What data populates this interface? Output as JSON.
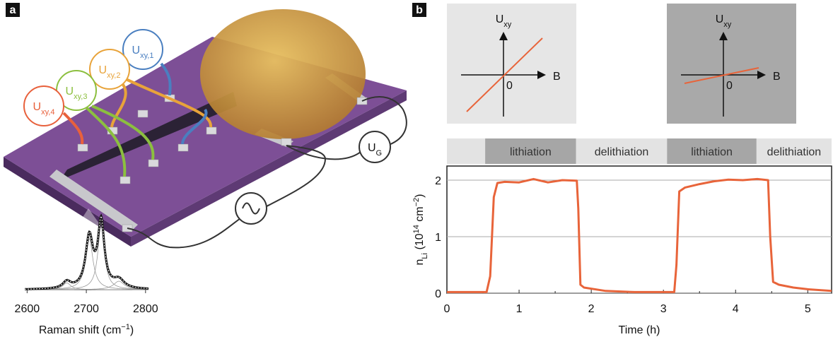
{
  "panel_labels": [
    "a",
    "b"
  ],
  "device": {
    "hall_probes": [
      {
        "main": "U",
        "sub": "xy,1",
        "color": "#4a7fc0"
      },
      {
        "main": "U",
        "sub": "xy,2",
        "color": "#e8a33a"
      },
      {
        "main": "U",
        "sub": "xy,3",
        "color": "#8cbf3f"
      },
      {
        "main": "U",
        "sub": "xy,4",
        "color": "#e8613c"
      }
    ],
    "gate": {
      "main": "U",
      "sub": "G"
    }
  },
  "raman": {
    "type": "line",
    "xlabel_parts": [
      {
        "text": "Raman shift (cm"
      },
      {
        "text": "−1",
        "shift": "super"
      },
      {
        "text": ")"
      }
    ],
    "xlim": [
      2596,
      2805
    ],
    "xticks": [
      2600,
      2700,
      2800
    ],
    "peaks": [
      {
        "center": 2667,
        "width": 16,
        "amplitude": 0.08
      },
      {
        "center": 2705,
        "width": 15,
        "amplitude": 0.6
      },
      {
        "center": 2725,
        "width": 13,
        "amplitude": 0.78
      },
      {
        "center": 2755,
        "width": 22,
        "amplitude": 0.1
      }
    ]
  },
  "hall_insets": [
    {
      "ylabel": {
        "main": "U",
        "sub": "xy"
      },
      "xlabel": "B",
      "origin": 0,
      "background": "#e6e6e6"
    },
    {
      "ylabel": {
        "main": "U",
        "sub": "xy"
      },
      "xlabel": "B",
      "origin": 0,
      "background": "#a9a9a9"
    }
  ],
  "chart_data": {
    "type": "line",
    "x": [
      0,
      0.55,
      0.6,
      0.65,
      0.7,
      0.8,
      1.0,
      1.2,
      1.4,
      1.6,
      1.8,
      1.82,
      1.85,
      1.9,
      2.2,
      2.6,
      3.15,
      3.18,
      3.22,
      3.3,
      3.5,
      3.7,
      3.9,
      4.1,
      4.3,
      4.45,
      4.48,
      4.52,
      4.6,
      4.8,
      5.0,
      5.33
    ],
    "series": [
      {
        "color": "#e8643a",
        "values": [
          0.02,
          0.02,
          0.3,
          1.7,
          1.95,
          1.97,
          1.96,
          2.02,
          1.96,
          2.0,
          1.99,
          1.5,
          0.15,
          0.1,
          0.04,
          0.02,
          0.02,
          0.5,
          1.8,
          1.87,
          1.93,
          1.98,
          2.01,
          2.0,
          2.02,
          2.0,
          1.0,
          0.2,
          0.15,
          0.1,
          0.07,
          0.04
        ]
      }
    ],
    "phases": [
      {
        "start": 0,
        "end": 0.53,
        "color": "#e3e3e3"
      },
      {
        "label": "lithiation",
        "start": 0.53,
        "end": 1.79,
        "color": "#a6a6a6"
      },
      {
        "label": "delithiation",
        "start": 1.79,
        "end": 3.05,
        "color": "#e3e3e3"
      },
      {
        "label": "lithiation",
        "start": 3.05,
        "end": 4.29,
        "color": "#a6a6a6"
      },
      {
        "label": "delithiation",
        "start": 4.29,
        "end": 5.33,
        "color": "#e3e3e3"
      }
    ],
    "xlim": [
      0,
      5.33
    ],
    "ylim": [
      0,
      2.25
    ],
    "xticks": [
      0,
      1,
      2,
      3,
      4,
      5
    ],
    "yticks": [
      0,
      1,
      2
    ],
    "grid": true,
    "xlabel": "Time (h)",
    "ylabel_parts": [
      {
        "text": "n"
      },
      {
        "text": "Li",
        "shift": "sub"
      },
      {
        "text": " (10"
      },
      {
        "text": "14",
        "shift": "super"
      },
      {
        "text": " cm"
      },
      {
        "text": "−2",
        "shift": "super"
      },
      {
        "text": ")"
      }
    ]
  }
}
